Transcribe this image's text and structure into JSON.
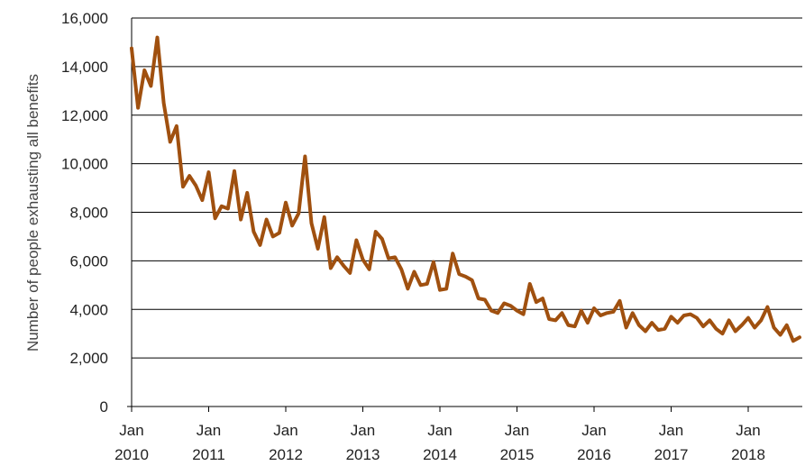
{
  "chart_data": {
    "type": "line",
    "title": "",
    "xlabel": "",
    "ylabel": "Number of people exhausting all benefits",
    "ylim": [
      0,
      16000
    ],
    "xlim": [
      "2010-01",
      "2018-09"
    ],
    "y_ticks": [
      "0",
      "2,000",
      "4,000",
      "6,000",
      "8,000",
      "10,000",
      "12,000",
      "14,000",
      "16,000"
    ],
    "y_tick_values": [
      0,
      2000,
      4000,
      6000,
      8000,
      10000,
      12000,
      14000,
      16000
    ],
    "x_ticks": [
      {
        "month": "Jan",
        "year": "2010",
        "date": "2010-01"
      },
      {
        "month": "Jan",
        "year": "2011",
        "date": "2011-01"
      },
      {
        "month": "Jan",
        "year": "2012",
        "date": "2012-01"
      },
      {
        "month": "Jan",
        "year": "2013",
        "date": "2013-01"
      },
      {
        "month": "Jan",
        "year": "2014",
        "date": "2014-01"
      },
      {
        "month": "Jan",
        "year": "2015",
        "date": "2015-01"
      },
      {
        "month": "Jan",
        "year": "2016",
        "date": "2016-01"
      },
      {
        "month": "Jan",
        "year": "2017",
        "date": "2017-01"
      },
      {
        "month": "Jan",
        "year": "2018",
        "date": "2018-01"
      }
    ],
    "grid": "horizontal",
    "line_color": "#A0500F",
    "series": [
      {
        "start": "2010-01",
        "frequency": "monthly",
        "values": [
          14750,
          12300,
          13850,
          13200,
          15200,
          12500,
          10900,
          11550,
          9050,
          9500,
          9100,
          8500,
          9650,
          7750,
          8250,
          8150,
          9700,
          7700,
          8800,
          7200,
          6650,
          7700,
          7000,
          7150,
          8400,
          7450,
          7950,
          10300,
          7550,
          6500,
          7800,
          5700,
          6150,
          5800,
          5500,
          6850,
          6050,
          5650,
          7200,
          6900,
          6100,
          6150,
          5650,
          4850,
          5550,
          5000,
          5050,
          5950,
          4800,
          4850,
          6300,
          5450,
          5350,
          5200,
          4450,
          4400,
          3950,
          3850,
          4250,
          4150,
          3950,
          3800,
          5050,
          4300,
          4450,
          3600,
          3550,
          3850,
          3350,
          3300,
          3950,
          3450,
          4050,
          3750,
          3850,
          3900,
          4350,
          3250,
          3850,
          3350,
          3100,
          3450,
          3150,
          3200,
          3700,
          3450,
          3750,
          3800,
          3650,
          3300,
          3550,
          3200,
          3000,
          3550,
          3100,
          3350,
          3650,
          3250,
          3550,
          4100,
          3250,
          2950,
          3350,
          2700,
          2850
        ]
      }
    ]
  }
}
